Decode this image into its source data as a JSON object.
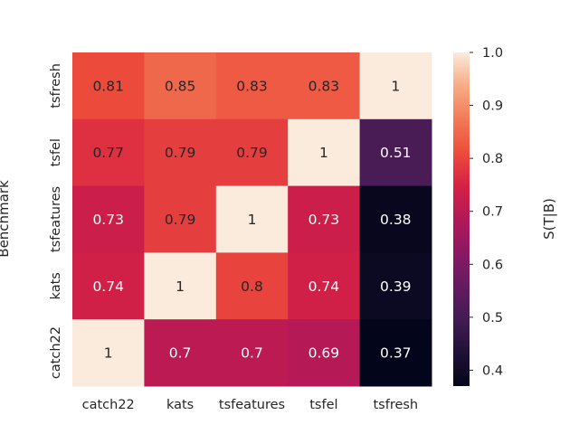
{
  "chart_data": {
    "type": "heatmap",
    "title": "",
    "xlabel": "",
    "ylabel": "Benchmark",
    "x_categories": [
      "catch22",
      "kats",
      "tsfeatures",
      "tsfel",
      "tsfresh"
    ],
    "y_categories": [
      "tsfresh",
      "tsfel",
      "tsfeatures",
      "kats",
      "catch22"
    ],
    "values": [
      [
        0.81,
        0.85,
        0.83,
        0.83,
        1
      ],
      [
        0.77,
        0.79,
        0.79,
        1,
        0.51
      ],
      [
        0.73,
        0.79,
        1,
        0.73,
        0.38
      ],
      [
        0.74,
        1,
        0.8,
        0.74,
        0.39
      ],
      [
        1,
        0.7,
        0.7,
        0.69,
        0.37
      ]
    ],
    "colorbar": {
      "label": "S(T|B)",
      "min": 0.37,
      "max": 1.0,
      "ticks": [
        "0.4",
        "0.5",
        "0.6",
        "0.7",
        "0.8",
        "0.9",
        "1.0"
      ],
      "colormap": "rocket"
    },
    "grid": false,
    "annotated": true
  }
}
